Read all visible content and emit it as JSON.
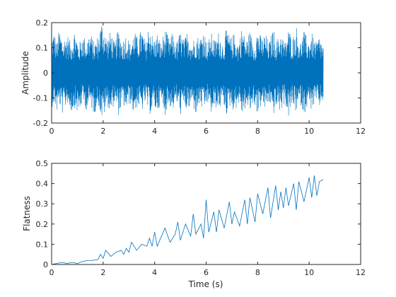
{
  "chart_data": [
    {
      "type": "line",
      "title": "",
      "xlabel": "",
      "ylabel": "Amplitude",
      "xlim": [
        0,
        12
      ],
      "ylim": [
        -0.2,
        0.2
      ],
      "xticks": [
        0,
        2,
        4,
        6,
        8,
        10,
        12
      ],
      "xtick_labels": [
        "0",
        "2",
        "4",
        "6",
        "8",
        "10",
        "12"
      ],
      "yticks": [
        -0.2,
        -0.1,
        0,
        0.1,
        0.2
      ],
      "ytick_labels": [
        "-0.2",
        "-0.1",
        "0",
        "0.1",
        "0.2"
      ],
      "grid": false,
      "color": "#0072BD",
      "series": [
        {
          "x_range": [
            0,
            10.55
          ],
          "envelope_points": {
            "t": [
              0.0,
              0.1,
              0.2,
              0.3,
              0.45,
              0.6,
              0.75,
              0.9,
              1.05,
              1.2,
              1.35,
              1.5,
              1.65,
              1.8,
              1.95,
              2.0,
              2.15,
              2.3,
              2.45,
              2.6,
              2.75,
              2.9,
              3.05,
              3.2,
              3.35,
              3.5,
              3.65,
              3.8,
              3.95,
              4.1,
              4.25,
              4.4,
              4.55,
              4.7,
              4.85,
              5.0,
              5.15,
              5.3,
              5.45,
              5.6,
              5.75,
              5.9,
              6.05,
              6.2,
              6.35,
              6.5,
              6.65,
              6.8,
              6.95,
              7.1,
              7.25,
              7.4,
              7.55,
              7.7,
              7.85,
              8.0,
              8.15,
              8.3,
              8.45,
              8.6,
              8.75,
              8.9,
              9.05,
              9.2,
              9.35,
              9.5,
              9.65,
              9.8,
              9.95,
              10.1,
              10.25,
              10.4,
              10.55
            ],
            "upper": [
              0.15,
              0.17,
              0.12,
              0.18,
              0.13,
              0.16,
              0.12,
              0.18,
              0.11,
              0.16,
              0.13,
              0.17,
              0.12,
              0.15,
              0.21,
              0.2,
              0.14,
              0.17,
              0.12,
              0.18,
              0.13,
              0.16,
              0.12,
              0.17,
              0.14,
              0.18,
              0.12,
              0.21,
              0.13,
              0.16,
              0.12,
              0.18,
              0.14,
              0.16,
              0.12,
              0.17,
              0.13,
              0.18,
              0.12,
              0.16,
              0.14,
              0.18,
              0.12,
              0.16,
              0.13,
              0.17,
              0.12,
              0.18,
              0.14,
              0.16,
              0.12,
              0.19,
              0.13,
              0.17,
              0.12,
              0.18,
              0.14,
              0.16,
              0.12,
              0.18,
              0.13,
              0.17,
              0.12,
              0.18,
              0.14,
              0.19,
              0.12,
              0.17,
              0.13,
              0.16,
              0.12,
              0.15,
              0.11
            ],
            "lower": [
              -0.14,
              -0.12,
              -0.16,
              -0.13,
              -0.17,
              -0.12,
              -0.16,
              -0.14,
              -0.17,
              -0.12,
              -0.15,
              -0.13,
              -0.17,
              -0.12,
              -0.19,
              -0.18,
              -0.13,
              -0.16,
              -0.12,
              -0.17,
              -0.13,
              -0.15,
              -0.12,
              -0.17,
              -0.13,
              -0.16,
              -0.12,
              -0.17,
              -0.14,
              -0.16,
              -0.12,
              -0.17,
              -0.13,
              -0.15,
              -0.12,
              -0.17,
              -0.14,
              -0.16,
              -0.12,
              -0.17,
              -0.13,
              -0.16,
              -0.12,
              -0.17,
              -0.14,
              -0.15,
              -0.12,
              -0.17,
              -0.13,
              -0.16,
              -0.12,
              -0.17,
              -0.14,
              -0.16,
              -0.12,
              -0.17,
              -0.13,
              -0.15,
              -0.12,
              -0.17,
              -0.14,
              -0.16,
              -0.12,
              -0.18,
              -0.13,
              -0.16,
              -0.12,
              -0.17,
              -0.13,
              -0.15,
              -0.12,
              -0.14,
              -0.11
            ]
          }
        }
      ]
    },
    {
      "type": "line",
      "title": "",
      "xlabel": "Time (s)",
      "ylabel": "Flatness",
      "xlim": [
        0,
        12
      ],
      "ylim": [
        0,
        0.5
      ],
      "xticks": [
        0,
        2,
        4,
        6,
        8,
        10,
        12
      ],
      "xtick_labels": [
        "0",
        "2",
        "4",
        "6",
        "8",
        "10",
        "12"
      ],
      "yticks": [
        0,
        0.1,
        0.2,
        0.3,
        0.4,
        0.5
      ],
      "ytick_labels": [
        "0",
        "0.1",
        "0.2",
        "0.3",
        "0.4",
        "0.5"
      ],
      "grid": false,
      "color": "#0072BD",
      "series": [
        {
          "x": [
            0.0,
            0.2,
            0.4,
            0.6,
            0.8,
            1.0,
            1.2,
            1.4,
            1.6,
            1.8,
            1.9,
            2.0,
            2.1,
            2.3,
            2.5,
            2.7,
            2.8,
            2.9,
            3.0,
            3.1,
            3.3,
            3.5,
            3.7,
            3.8,
            3.9,
            4.0,
            4.1,
            4.2,
            4.4,
            4.6,
            4.8,
            4.9,
            5.0,
            5.2,
            5.4,
            5.5,
            5.6,
            5.8,
            5.9,
            6.0,
            6.1,
            6.3,
            6.4,
            6.5,
            6.7,
            6.9,
            7.0,
            7.1,
            7.3,
            7.5,
            7.6,
            7.7,
            7.9,
            8.0,
            8.2,
            8.4,
            8.5,
            8.7,
            8.8,
            8.9,
            9.0,
            9.1,
            9.2,
            9.4,
            9.5,
            9.6,
            9.8,
            10.0,
            10.1,
            10.2,
            10.3,
            10.4,
            10.55
          ],
          "values": [
            0.0,
            0.005,
            0.01,
            0.005,
            0.01,
            0.005,
            0.015,
            0.02,
            0.02,
            0.025,
            0.05,
            0.03,
            0.07,
            0.04,
            0.06,
            0.07,
            0.05,
            0.08,
            0.06,
            0.11,
            0.07,
            0.1,
            0.09,
            0.13,
            0.09,
            0.16,
            0.09,
            0.12,
            0.18,
            0.11,
            0.15,
            0.21,
            0.12,
            0.2,
            0.14,
            0.25,
            0.15,
            0.2,
            0.13,
            0.32,
            0.16,
            0.26,
            0.16,
            0.27,
            0.18,
            0.31,
            0.2,
            0.26,
            0.19,
            0.32,
            0.2,
            0.33,
            0.21,
            0.35,
            0.25,
            0.38,
            0.23,
            0.39,
            0.27,
            0.36,
            0.28,
            0.38,
            0.29,
            0.4,
            0.27,
            0.41,
            0.31,
            0.43,
            0.33,
            0.44,
            0.34,
            0.41,
            0.42
          ]
        }
      ]
    }
  ]
}
